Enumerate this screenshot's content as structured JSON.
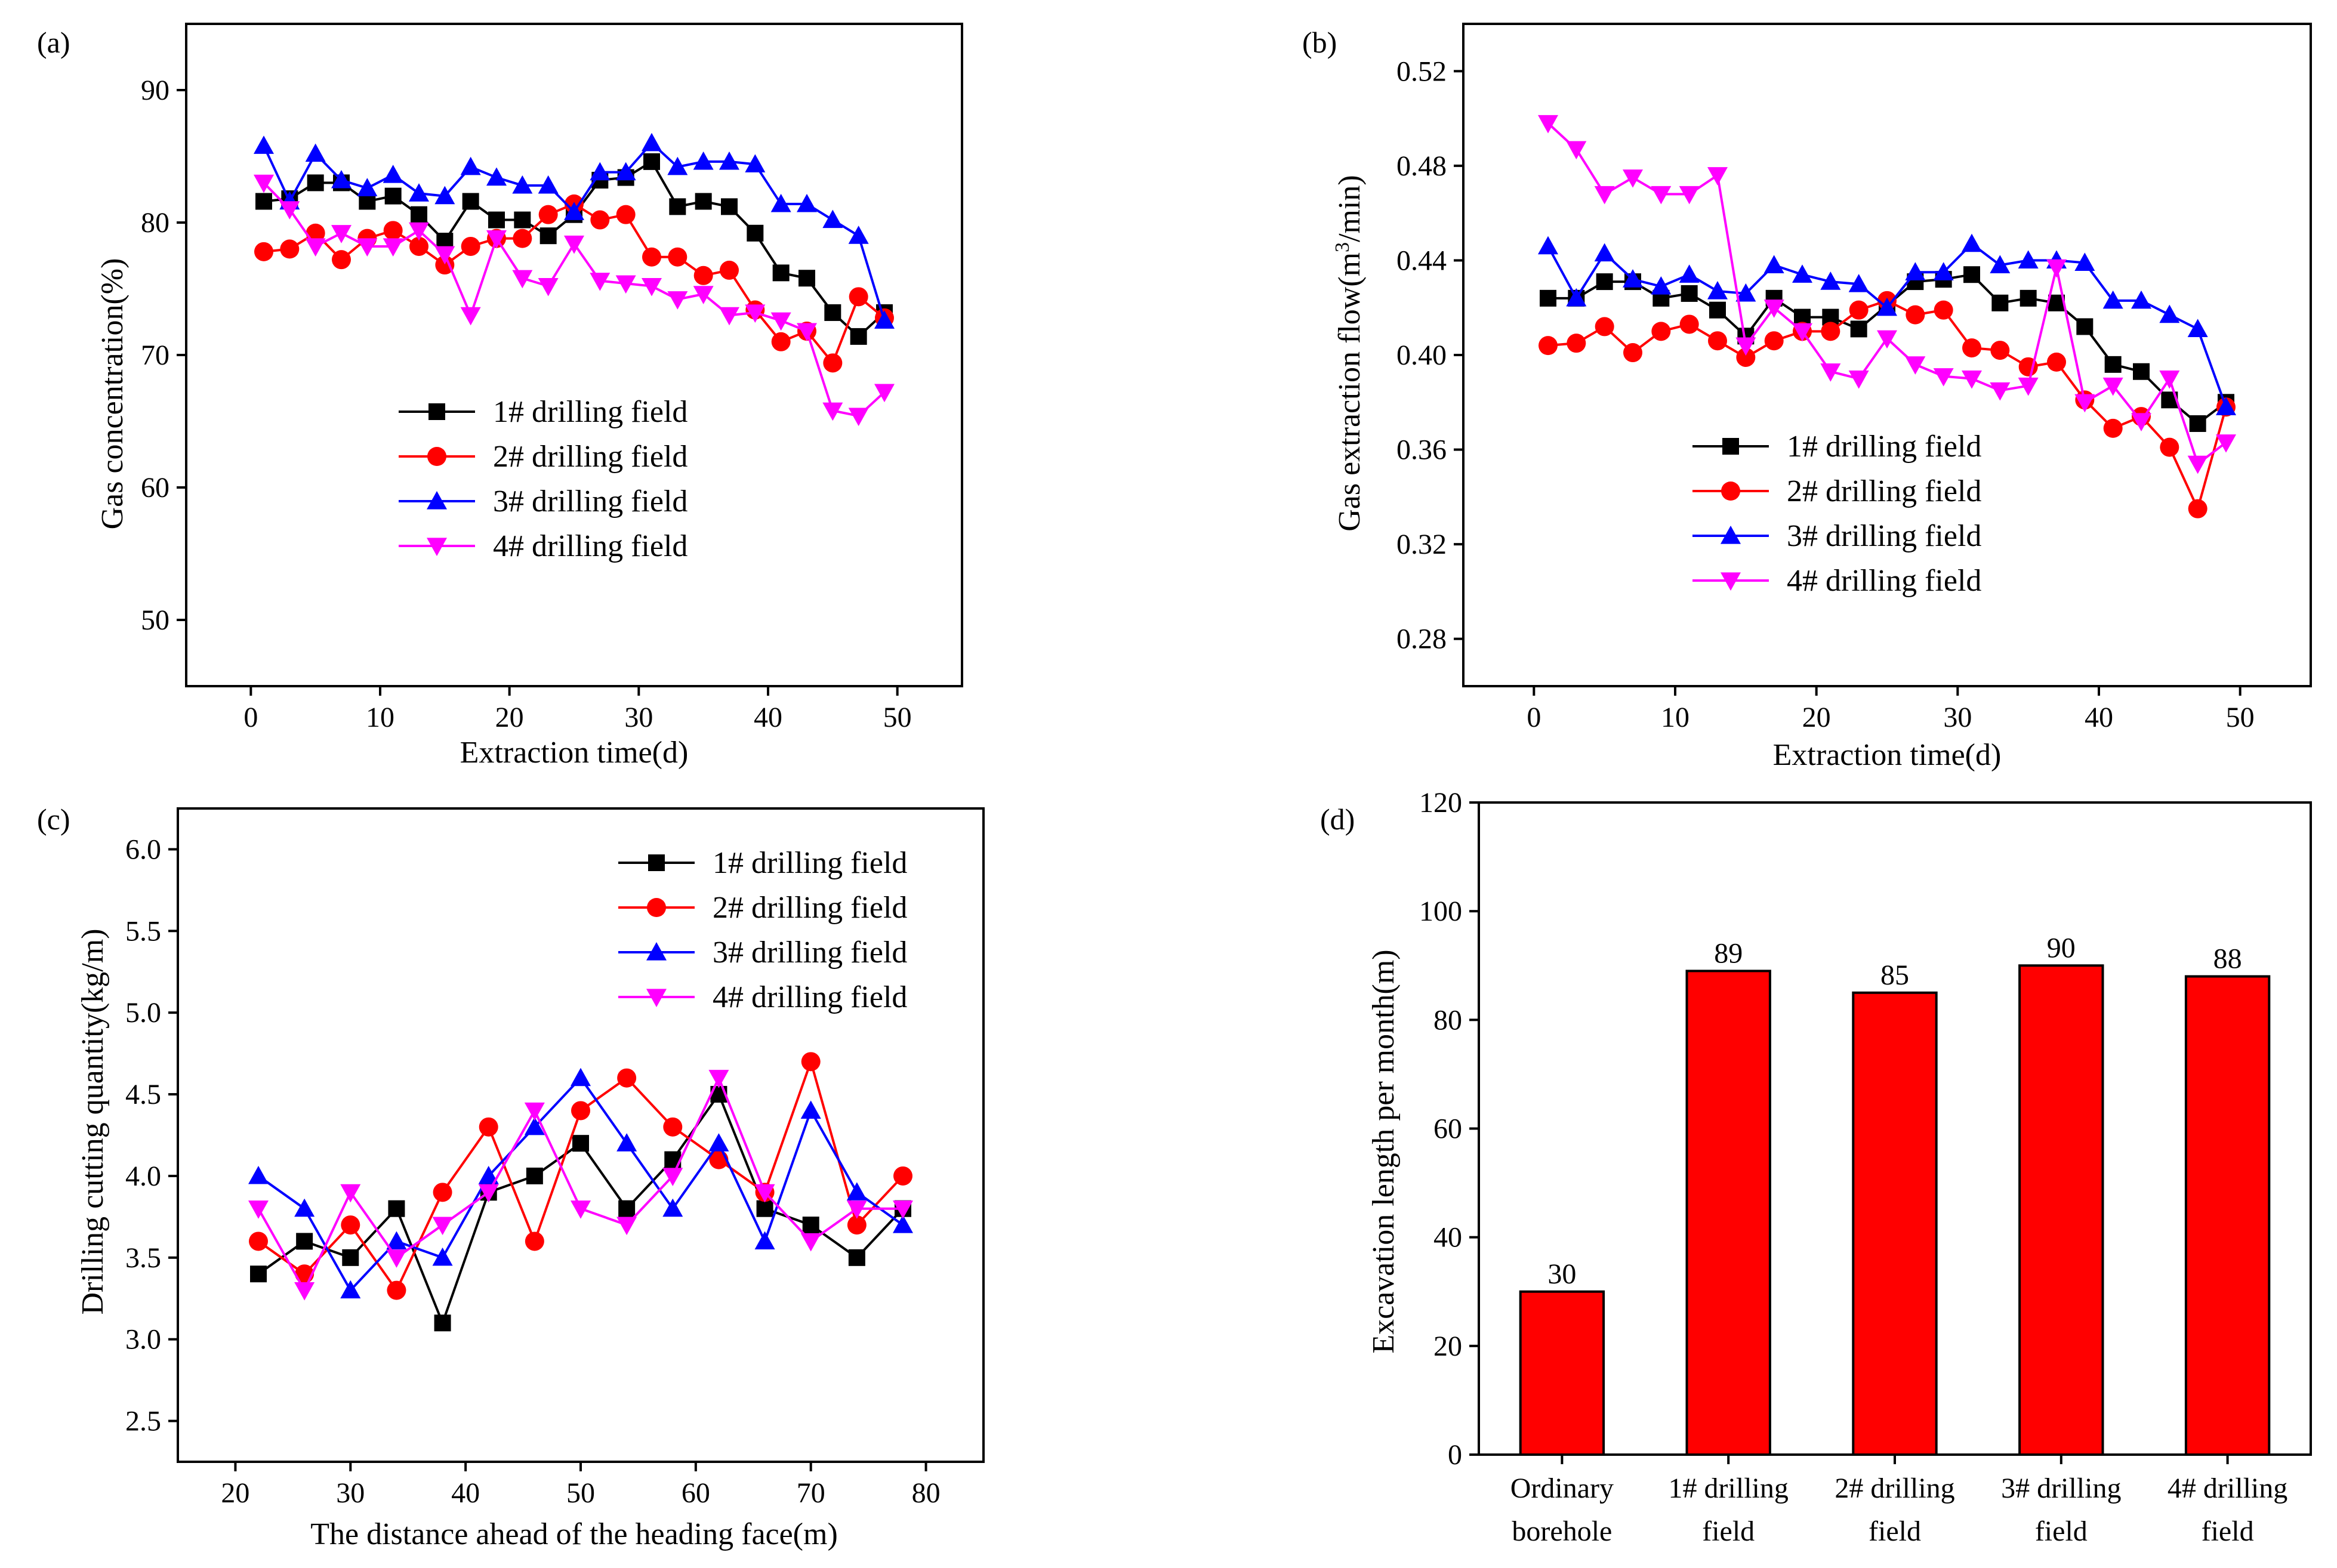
{
  "panels": [
    {
      "id": "a",
      "panel_label": "(a)",
      "xlabel": "Extraction time(d)",
      "ylabel": "Gas concentration(%)"
    },
    {
      "id": "b",
      "panel_label": "(b)",
      "xlabel": "Extraction time(d)",
      "ylabel": "Gas extraction flow(m³/min)"
    },
    {
      "id": "c",
      "panel_label": "(c)",
      "xlabel": "The distance ahead of the heading face(m)",
      "ylabel": "Drilling cutting quantity(kg/m)"
    },
    {
      "id": "d",
      "panel_label": "(d)",
      "xlabel": "",
      "ylabel": "Excavation length per month(m)"
    }
  ],
  "chart_data": [
    {
      "type": "line",
      "panel": "a",
      "xlabel": "Extraction time(d)",
      "ylabel": "Gas concentration(%)",
      "xlim": [
        -5,
        55
      ],
      "ylim": [
        45,
        95
      ],
      "xticks": [
        0,
        10,
        20,
        30,
        40,
        50
      ],
      "yticks": [
        50,
        60,
        70,
        80,
        90
      ],
      "x": [
        1,
        3,
        5,
        7,
        9,
        11,
        13,
        15,
        17,
        19,
        21,
        23,
        25,
        27,
        29,
        31,
        33,
        35,
        37,
        39,
        41,
        43,
        45,
        47,
        49
      ],
      "legend_position": "center-left",
      "series": [
        {
          "name": "1# drilling field",
          "color": "#000000",
          "marker": "square",
          "values": [
            81.6,
            81.8,
            83.0,
            83.0,
            81.6,
            82.0,
            80.6,
            78.6,
            81.6,
            80.2,
            80.2,
            79.0,
            80.6,
            83.2,
            83.4,
            84.6,
            81.2,
            81.6,
            81.2,
            79.2,
            76.2,
            75.8,
            73.2,
            71.4,
            73.2
          ]
        },
        {
          "name": "2# drilling field",
          "color": "#ff0000",
          "marker": "circle",
          "values": [
            77.8,
            78.0,
            79.2,
            77.2,
            78.8,
            79.4,
            78.2,
            76.8,
            78.2,
            78.8,
            78.8,
            80.6,
            81.4,
            80.2,
            80.6,
            77.4,
            77.4,
            76.0,
            76.4,
            73.4,
            71.0,
            71.8,
            69.4,
            74.4,
            72.8
          ]
        },
        {
          "name": "3# drilling field",
          "color": "#0000ff",
          "marker": "triangle-up",
          "values": [
            85.8,
            81.6,
            85.2,
            83.2,
            82.6,
            83.6,
            82.2,
            82.0,
            84.2,
            83.4,
            82.8,
            82.8,
            80.8,
            83.8,
            83.8,
            86.0,
            84.2,
            84.6,
            84.6,
            84.4,
            81.4,
            81.4,
            80.2,
            79.0,
            72.6
          ]
        },
        {
          "name": "4# drilling field",
          "color": "#ff00ff",
          "marker": "triangle-down",
          "values": [
            83.0,
            81.0,
            78.2,
            79.2,
            78.2,
            78.2,
            79.4,
            77.6,
            73.0,
            78.8,
            75.8,
            75.2,
            78.4,
            75.6,
            75.4,
            75.2,
            74.2,
            74.6,
            73.0,
            73.2,
            72.6,
            71.8,
            65.8,
            65.4,
            67.2
          ]
        }
      ]
    },
    {
      "type": "line",
      "panel": "b",
      "xlabel": "Extraction time(d)",
      "ylabel": "Gas extraction flow(m³/min)",
      "xlim": [
        -5,
        55
      ],
      "ylim": [
        0.26,
        0.54
      ],
      "xticks": [
        0,
        10,
        20,
        30,
        40,
        50
      ],
      "yticks": [
        0.28,
        0.32,
        0.36,
        0.4,
        0.44,
        0.48,
        0.52
      ],
      "ytick_labels": [
        "0.28",
        "0.32",
        "0.36",
        "0.40",
        "0.44",
        "0.48",
        "0.52"
      ],
      "x": [
        1,
        3,
        5,
        7,
        9,
        11,
        13,
        15,
        17,
        19,
        21,
        23,
        25,
        27,
        29,
        31,
        33,
        35,
        37,
        39,
        41,
        43,
        45,
        47,
        49
      ],
      "legend_position": "bottom-right",
      "series": [
        {
          "name": "1# drilling field",
          "color": "#000000",
          "marker": "square",
          "values": [
            0.424,
            0.424,
            0.431,
            0.431,
            0.424,
            0.426,
            0.419,
            0.408,
            0.424,
            0.416,
            0.416,
            0.411,
            0.421,
            0.431,
            0.432,
            0.434,
            0.422,
            0.424,
            0.422,
            0.412,
            0.396,
            0.393,
            0.381,
            0.371,
            0.38
          ]
        },
        {
          "name": "2# drilling field",
          "color": "#ff0000",
          "marker": "circle",
          "values": [
            0.404,
            0.405,
            0.412,
            0.401,
            0.41,
            0.413,
            0.406,
            0.399,
            0.406,
            0.41,
            0.41,
            0.419,
            0.423,
            0.417,
            0.419,
            0.403,
            0.402,
            0.395,
            0.397,
            0.381,
            0.369,
            0.374,
            0.361,
            0.335,
            0.378
          ]
        },
        {
          "name": "3# drilling field",
          "color": "#0000ff",
          "marker": "triangle-up",
          "values": [
            0.446,
            0.424,
            0.443,
            0.432,
            0.429,
            0.434,
            0.427,
            0.426,
            0.438,
            0.434,
            0.431,
            0.43,
            0.42,
            0.435,
            0.435,
            0.447,
            0.438,
            0.44,
            0.44,
            0.439,
            0.423,
            0.423,
            0.417,
            0.411,
            0.378
          ]
        },
        {
          "name": "4# drilling field",
          "color": "#ff00ff",
          "marker": "triangle-down",
          "values": [
            0.498,
            0.487,
            0.468,
            0.475,
            0.468,
            0.468,
            0.476,
            0.404,
            0.42,
            0.41,
            0.393,
            0.39,
            0.407,
            0.396,
            0.391,
            0.39,
            0.385,
            0.387,
            0.437,
            0.38,
            0.387,
            0.372,
            0.39,
            0.354,
            0.363
          ]
        }
      ]
    },
    {
      "type": "line",
      "panel": "c",
      "xlabel": "The distance ahead of the heading face(m)",
      "ylabel": "Drilling cutting quantity(kg/m)",
      "xlim": [
        15,
        85
      ],
      "ylim": [
        2.25,
        6.25
      ],
      "xticks": [
        20,
        30,
        40,
        50,
        60,
        70,
        80
      ],
      "yticks": [
        2.5,
        3.0,
        3.5,
        4.0,
        4.5,
        5.0,
        5.5,
        6.0
      ],
      "ytick_labels": [
        "2.5",
        "3.0",
        "3.5",
        "4.0",
        "4.5",
        "5.0",
        "5.5",
        "6.0"
      ],
      "x": [
        22,
        26,
        30,
        34,
        38,
        42,
        46,
        50,
        54,
        58,
        62,
        66,
        70,
        74,
        78
      ],
      "legend_position": "top-right",
      "series": [
        {
          "name": "1# drilling field",
          "color": "#000000",
          "marker": "square",
          "values": [
            3.4,
            3.6,
            3.5,
            3.8,
            3.1,
            3.9,
            4.0,
            4.2,
            3.8,
            4.1,
            4.5,
            3.8,
            3.7,
            3.5,
            3.8
          ]
        },
        {
          "name": "2# drilling field",
          "color": "#ff0000",
          "marker": "circle",
          "values": [
            3.6,
            3.4,
            3.7,
            3.3,
            3.9,
            4.3,
            3.6,
            4.4,
            4.6,
            4.3,
            4.1,
            3.9,
            4.7,
            3.7,
            4.0
          ]
        },
        {
          "name": "3# drilling field",
          "color": "#0000ff",
          "marker": "triangle-up",
          "values": [
            4.0,
            3.8,
            3.3,
            3.6,
            3.5,
            4.0,
            4.3,
            4.6,
            4.2,
            3.8,
            4.2,
            3.6,
            4.4,
            3.9,
            3.7
          ]
        },
        {
          "name": "4# drilling field",
          "color": "#ff00ff",
          "marker": "triangle-down",
          "values": [
            3.8,
            3.3,
            3.9,
            3.5,
            3.7,
            3.9,
            4.4,
            3.8,
            3.7,
            4.0,
            4.6,
            3.9,
            3.6,
            3.8,
            3.8
          ]
        }
      ]
    },
    {
      "type": "bar",
      "panel": "d",
      "ylabel": "Excavation length per month(m)",
      "ylim": [
        0,
        120
      ],
      "yticks": [
        0,
        20,
        40,
        60,
        80,
        100,
        120
      ],
      "categories": [
        "Ordinary borehole",
        "1# drilling field",
        "2# drilling field",
        "3# drilling field",
        "4# drilling field"
      ],
      "category_lines": [
        [
          "Ordinary",
          "borehole"
        ],
        [
          "1# drilling",
          "field"
        ],
        [
          "2# drilling",
          "field"
        ],
        [
          "3# drilling",
          "field"
        ],
        [
          "4# drilling",
          "field"
        ]
      ],
      "values": [
        30,
        89,
        85,
        90,
        88
      ],
      "data_labels": [
        "30",
        "89",
        "85",
        "90",
        "88"
      ],
      "bar_color": "#ff0000"
    }
  ]
}
